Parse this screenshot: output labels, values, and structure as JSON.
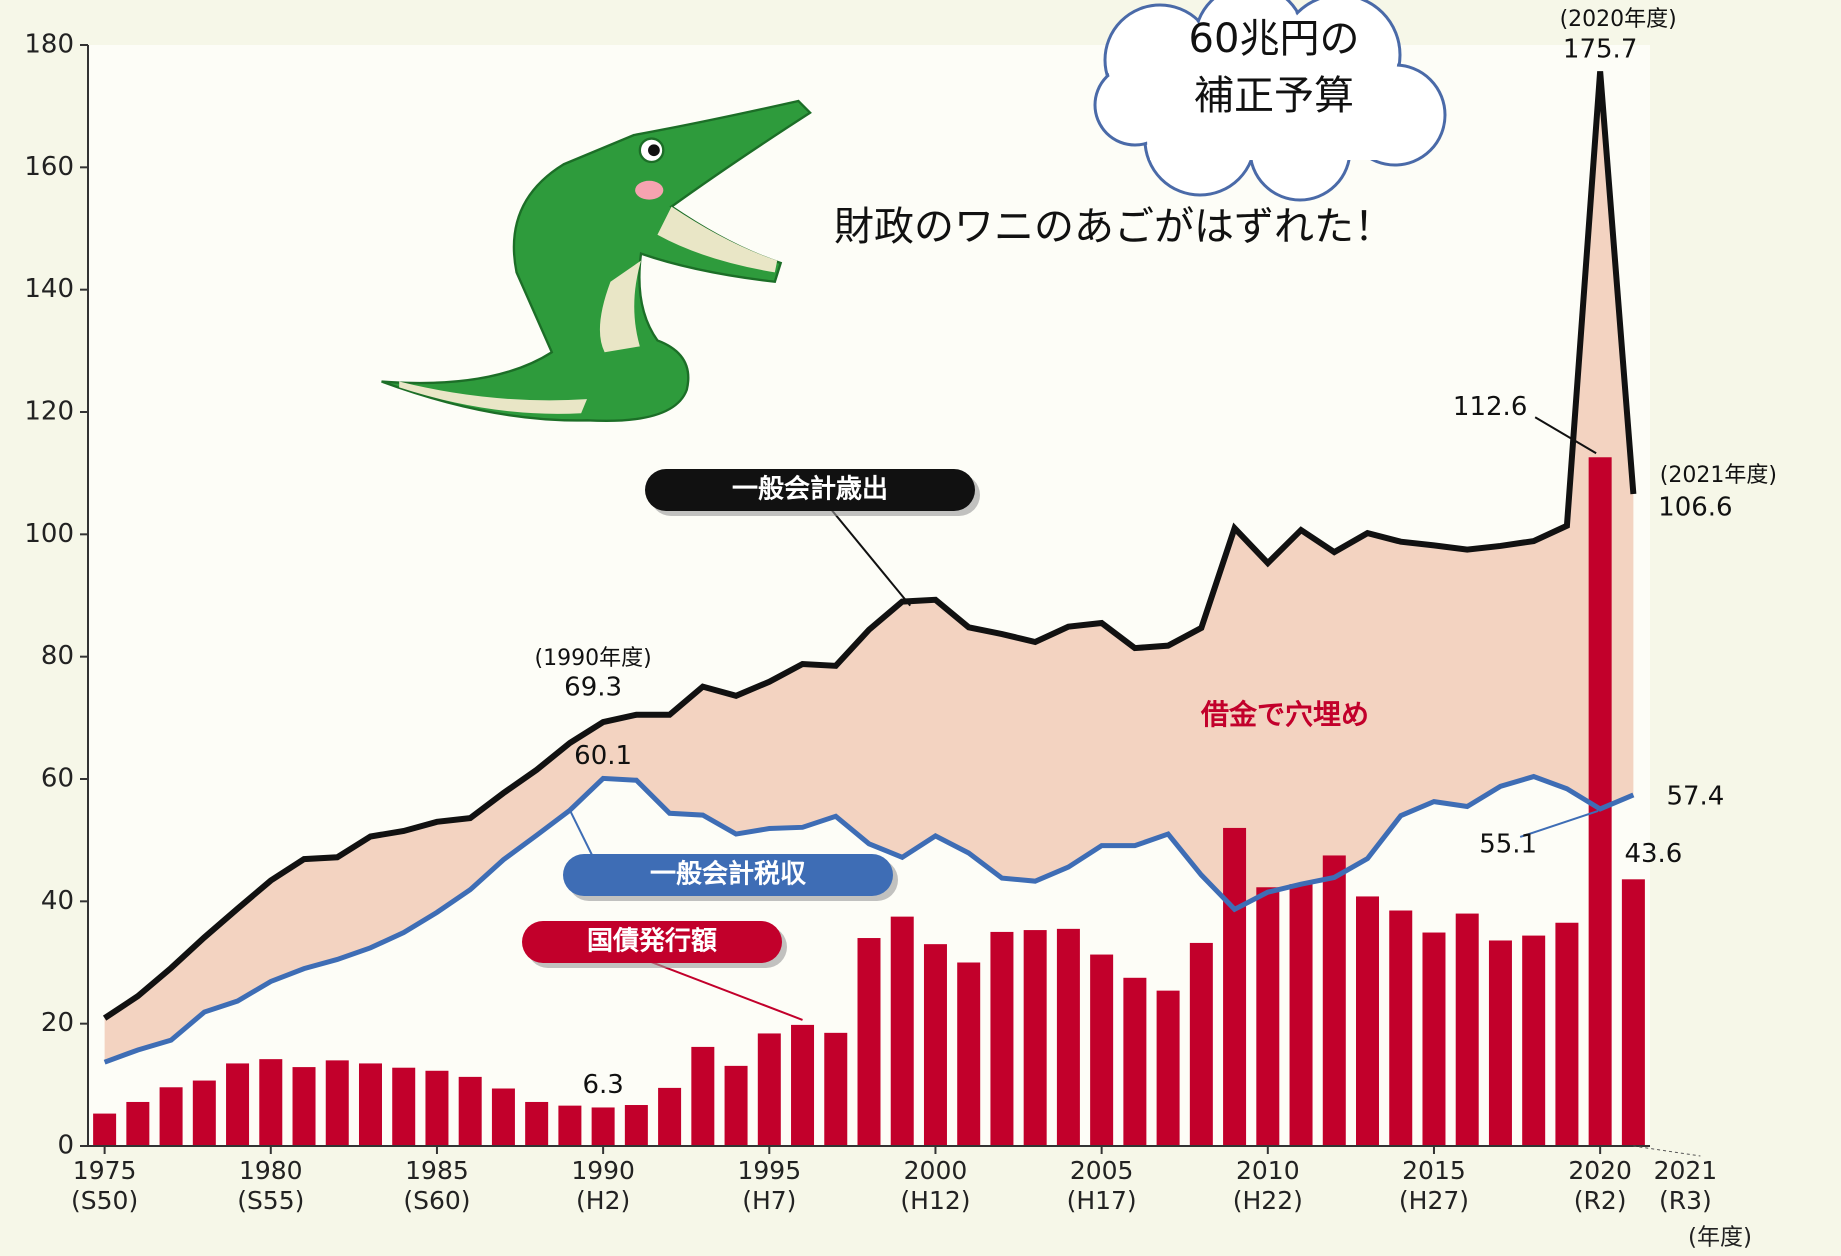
{
  "chart_data": {
    "type": "combo",
    "x": [
      1975,
      1976,
      1977,
      1978,
      1979,
      1980,
      1981,
      1982,
      1983,
      1984,
      1985,
      1986,
      1987,
      1988,
      1989,
      1990,
      1991,
      1992,
      1993,
      1994,
      1995,
      1996,
      1997,
      1998,
      1999,
      2000,
      2001,
      2002,
      2003,
      2004,
      2005,
      2006,
      2007,
      2008,
      2009,
      2010,
      2011,
      2012,
      2013,
      2014,
      2015,
      2016,
      2017,
      2018,
      2019,
      2020,
      2021
    ],
    "series": [
      {
        "name": "一般会計歳出",
        "type": "line",
        "color": "#111111",
        "values": [
          20.9,
          24.5,
          29.1,
          34.1,
          38.8,
          43.4,
          46.9,
          47.2,
          50.6,
          51.5,
          53.0,
          53.6,
          57.7,
          61.5,
          65.9,
          69.3,
          70.5,
          70.5,
          75.1,
          73.6,
          75.9,
          78.8,
          78.5,
          84.4,
          89.0,
          89.3,
          84.8,
          83.7,
          82.4,
          84.9,
          85.5,
          81.4,
          81.8,
          84.7,
          101.0,
          95.3,
          100.7,
          97.1,
          100.2,
          98.8,
          98.2,
          97.5,
          98.1,
          98.9,
          101.4,
          175.7,
          106.6
        ]
      },
      {
        "name": "一般会計税収",
        "type": "line",
        "color": "#3e6db5",
        "values": [
          13.7,
          15.7,
          17.3,
          21.9,
          23.7,
          26.9,
          29.0,
          30.5,
          32.4,
          34.9,
          38.2,
          41.9,
          46.8,
          50.8,
          54.9,
          60.1,
          59.8,
          54.4,
          54.1,
          51.0,
          51.9,
          52.1,
          53.9,
          49.4,
          47.2,
          50.7,
          47.9,
          43.8,
          43.3,
          45.6,
          49.1,
          49.1,
          51.0,
          44.3,
          38.7,
          41.5,
          42.8,
          43.9,
          47.0,
          54.0,
          56.3,
          55.5,
          58.8,
          60.4,
          58.4,
          55.1,
          57.4
        ]
      },
      {
        "name": "国債発行額",
        "type": "bar",
        "color": "#c2002b",
        "values": [
          5.3,
          7.2,
          9.6,
          10.7,
          13.5,
          14.2,
          12.9,
          14.0,
          13.5,
          12.8,
          12.3,
          11.3,
          9.4,
          7.2,
          6.6,
          6.3,
          6.7,
          9.5,
          16.2,
          13.1,
          18.4,
          19.8,
          18.5,
          34.0,
          37.5,
          33.0,
          30.0,
          35.0,
          35.3,
          35.5,
          31.3,
          27.5,
          25.4,
          33.2,
          52.0,
          42.3,
          42.8,
          47.5,
          40.8,
          38.5,
          34.9,
          38.0,
          33.6,
          34.4,
          36.5,
          112.6,
          43.6
        ]
      }
    ],
    "area_color": "#f3d3c1",
    "xlim": [
      1974.5,
      2021.5
    ],
    "xticks": [
      1975,
      1980,
      1985,
      1990,
      1995,
      2000,
      2005,
      2010,
      2015,
      2020,
      2021
    ],
    "xtick_sublabels": [
      "(S50)",
      "(S55)",
      "(S60)",
      "(H2)",
      "(H7)",
      "(H12)",
      "(H17)",
      "(H22)",
      "(H27)",
      "(R2)",
      "(R3)"
    ],
    "x_unit": "(年度)",
    "ylim": [
      0,
      180
    ],
    "yticks": [
      0,
      20,
      40,
      60,
      80,
      100,
      120,
      140,
      160,
      180
    ],
    "annotations": [
      "(1990年度)",
      "(2020年度)",
      "(2021年度)",
      "借金で穴埋め",
      "財政のワニのあごがはずれた！",
      "60兆円の",
      "補正予算"
    ]
  }
}
